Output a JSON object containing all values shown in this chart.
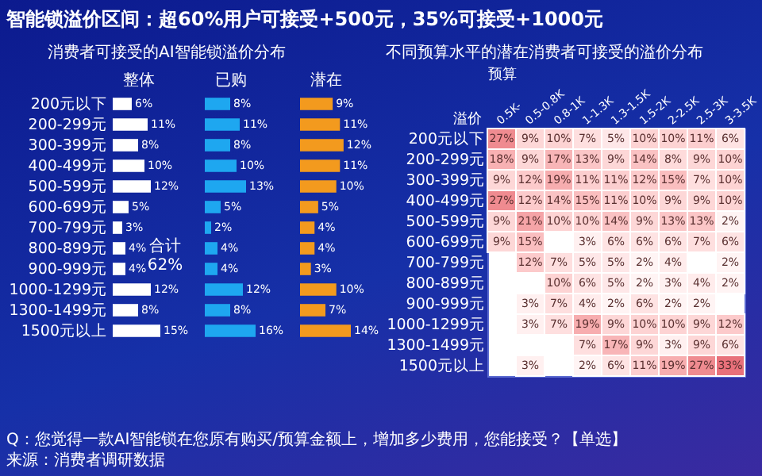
{
  "chart_data": [
    {
      "type": "bar",
      "orientation": "horizontal",
      "title": "智能锁溢价区间：超60%用户可接受+500元，35%可接受+1000元",
      "subtitle": "消费者可接受的AI智能锁溢价分布",
      "xlabel": "整体",
      "categories": [
        "200元以下",
        "200-299元",
        "300-399元",
        "400-499元",
        "500-599元",
        "600-699元",
        "700-799元",
        "800-899元",
        "900-999元",
        "1000-1299元",
        "1300-1499元",
        "1500元以上"
      ],
      "values": [
        6,
        11,
        8,
        10,
        12,
        5,
        3,
        4,
        4,
        12,
        8,
        15
      ],
      "value_labels": [
        "6%",
        "11%",
        "8%",
        "10%",
        "12%",
        "5%",
        "3%",
        "4%",
        "4%",
        "12%",
        "8%",
        "15%"
      ],
      "color": "#ffffff",
      "tick_labels": "y",
      "annotations": [
        "合计62%",
        "Q：您觉得一款AI智能锁在您原有购买/预算金额上，增加多少费用，您能接受？【单选】",
        "来源：消费者调研数据"
      ]
    },
    {
      "type": "bar",
      "orientation": "horizontal",
      "xlabel": "已购",
      "values": [
        8,
        11,
        8,
        10,
        13,
        5,
        2,
        4,
        4,
        12,
        8,
        16
      ],
      "value_labels": [
        "8%",
        "11%",
        "8%",
        "10%",
        "13%",
        "5%",
        "2%",
        "4%",
        "4%",
        "12%",
        "8%",
        "16%"
      ],
      "color": "#1ea7f0"
    },
    {
      "type": "bar",
      "orientation": "horizontal",
      "xlabel": "潜在",
      "values": [
        9,
        11,
        12,
        11,
        10,
        5,
        4,
        4,
        3,
        10,
        7,
        14
      ],
      "value_labels": [
        "9%",
        "11%",
        "12%",
        "11%",
        "10%",
        "5%",
        "4%",
        "4%",
        "3%",
        "10%",
        "7%",
        "14%"
      ],
      "color": "#f39a1e"
    },
    {
      "type": "heatmap",
      "title": "不同预算水平的潜在消费者可接受的溢价分布",
      "xlabel": "预算",
      "ylabel": "溢价",
      "categories": [
        "0.5K-",
        "0.5-0.8K",
        "0.8-1K",
        "1-1.3K",
        "1.3-1.5K",
        "1.5-2K",
        "2-2.5K",
        "2.5-3K",
        "3-3.5K"
      ],
      "y_categories": [
        "200元以下",
        "200-299元",
        "300-399元",
        "400-499元",
        "500-599元",
        "600-699元",
        "700-799元",
        "800-899元",
        "900-999元",
        "1000-1299元",
        "1300-1499元",
        "1500元以上"
      ],
      "cells": [
        [
          27,
          9,
          10,
          7,
          5,
          10,
          10,
          11,
          6
        ],
        [
          18,
          9,
          17,
          13,
          9,
          14,
          8,
          9,
          10
        ],
        [
          9,
          12,
          19,
          11,
          11,
          12,
          15,
          7,
          10
        ],
        [
          27,
          12,
          14,
          15,
          11,
          10,
          9,
          9,
          10
        ],
        [
          9,
          21,
          10,
          10,
          14,
          9,
          13,
          13,
          2
        ],
        [
          9,
          15,
          null,
          3,
          6,
          6,
          6,
          7,
          6
        ],
        [
          null,
          12,
          7,
          5,
          5,
          2,
          4,
          null,
          2
        ],
        [
          null,
          null,
          10,
          6,
          5,
          2,
          3,
          4,
          2
        ],
        [
          null,
          3,
          7,
          4,
          2,
          6,
          2,
          2,
          null
        ],
        [
          null,
          3,
          7,
          19,
          9,
          10,
          10,
          9,
          12
        ],
        [
          null,
          null,
          null,
          7,
          17,
          9,
          3,
          9,
          6
        ],
        [
          null,
          3,
          null,
          2,
          6,
          11,
          19,
          27,
          33
        ]
      ],
      "cell_labels": [
        [
          "27%",
          "9%",
          "10%",
          "7%",
          "5%",
          "10%",
          "10%",
          "11%",
          "6%"
        ],
        [
          "18%",
          "9%",
          "17%",
          "13%",
          "9%",
          "14%",
          "8%",
          "9%",
          "10%"
        ],
        [
          "9%",
          "12%",
          "19%",
          "11%",
          "11%",
          "12%",
          "15%",
          "7%",
          "10%"
        ],
        [
          "27%",
          "12%",
          "14%",
          "15%",
          "11%",
          "10%",
          "9%",
          "9%",
          "10%"
        ],
        [
          "9%",
          "21%",
          "10%",
          "10%",
          "14%",
          "9%",
          "13%",
          "13%",
          "2%"
        ],
        [
          "9%",
          "15%",
          null,
          "3%",
          "6%",
          "6%",
          "6%",
          "7%",
          "6%"
        ],
        [
          null,
          "12%",
          "7%",
          "5%",
          "5%",
          "2%",
          "4%",
          null,
          "2%"
        ],
        [
          null,
          null,
          "10%",
          "6%",
          "5%",
          "2%",
          "3%",
          "4%",
          "2%"
        ],
        [
          null,
          "3%",
          "7%",
          "4%",
          "2%",
          "6%",
          "2%",
          "2%",
          null
        ],
        [
          null,
          "3%",
          "7%",
          "19%",
          "9%",
          "10%",
          "10%",
          "9%",
          "12%"
        ],
        [
          null,
          null,
          null,
          "7%",
          "17%",
          "9%",
          "3%",
          "9%",
          "6%"
        ],
        [
          null,
          "3%",
          null,
          "2%",
          "6%",
          "11%",
          "19%",
          "27%",
          "33%"
        ]
      ]
    }
  ]
}
